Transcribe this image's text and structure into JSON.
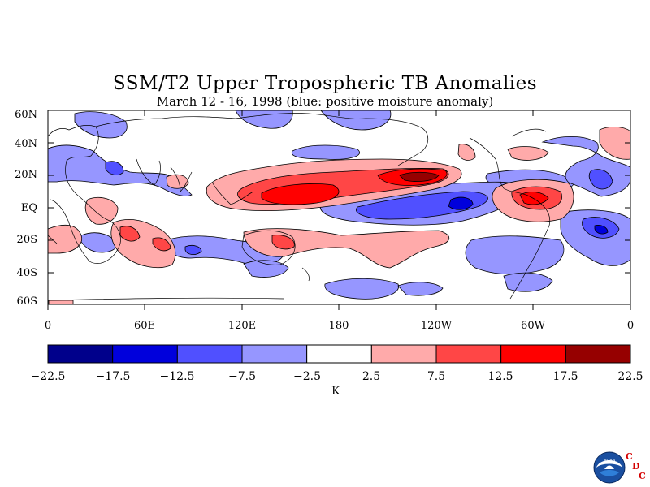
{
  "title": "SSM/T2 Upper Tropospheric TB Anomalies",
  "subtitle": "March 12 - 16, 1998 (blue: positive moisture anomaly)",
  "y_ticks": [
    "60N",
    "40N",
    "20N",
    "EQ",
    "20S",
    "40S",
    "60S"
  ],
  "x_ticks": [
    "0",
    "60E",
    "120E",
    "180",
    "120W",
    "60W",
    "0"
  ],
  "colorbar": {
    "labels": [
      "−22.5",
      "−17.5",
      "−12.5",
      "−7.5",
      "−2.5",
      "2.5",
      "7.5",
      "12.5",
      "17.5",
      "22.5"
    ],
    "colors": [
      "#00008b",
      "#0000dc",
      "#5050ff",
      "#9696ff",
      "#ffffff",
      "#ffaaaa",
      "#ff4646",
      "#ff0000",
      "#960000"
    ],
    "unit": "K"
  },
  "logo": {
    "name": "noaa-logo",
    "text": "NOAA"
  },
  "cdc": {
    "c1": "C",
    "d": "D",
    "c2": "C"
  }
}
